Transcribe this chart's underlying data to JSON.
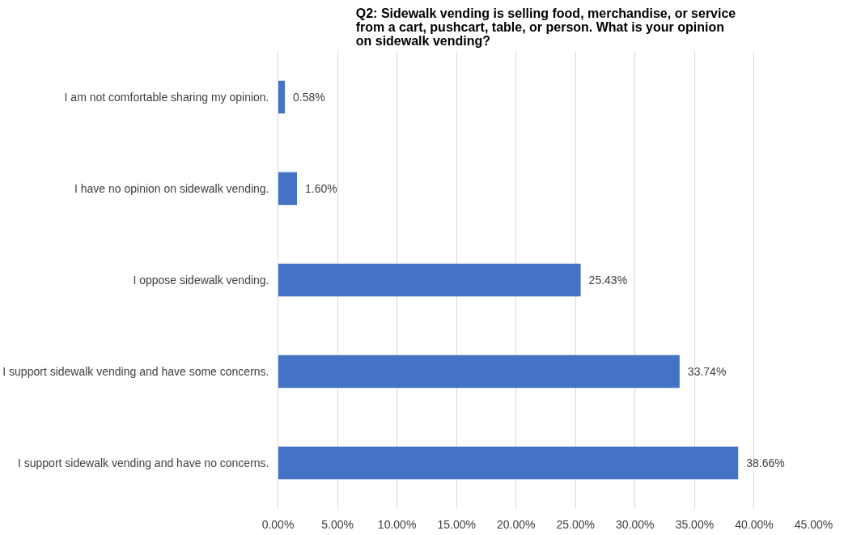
{
  "chart_data": {
    "type": "bar",
    "orientation": "horizontal",
    "title": "Q2: Sidewalk vending is selling food, merchandise, or service from a cart, pushcart, table, or person. What is your opinion on sidewalk vending?",
    "categories": [
      "I am not comfortable sharing my opinion.",
      "I have no opinion on sidewalk vending.",
      "I oppose sidewalk vending.",
      "I support sidewalk vending and have some concerns.",
      "I support sidewalk vending and have no concerns."
    ],
    "values": [
      0.58,
      1.6,
      25.43,
      33.74,
      38.66
    ],
    "value_labels": [
      "0.58%",
      "1.60%",
      "25.43%",
      "33.74%",
      "38.66%"
    ],
    "color": "#4472c4",
    "xlim": [
      0,
      45
    ],
    "xticks": [
      {
        "value": 0,
        "label": "0.00%"
      },
      {
        "value": 5,
        "label": "5.00%"
      },
      {
        "value": 10,
        "label": "10.00%"
      },
      {
        "value": 15,
        "label": "15.00%"
      },
      {
        "value": 20,
        "label": "20.00%"
      },
      {
        "value": 25,
        "label": "25.00%"
      },
      {
        "value": 30,
        "label": "30.00%"
      },
      {
        "value": 35,
        "label": "35.00%"
      },
      {
        "value": 40,
        "label": "40.00%"
      },
      {
        "value": 45,
        "label": "45.00%"
      }
    ],
    "grid": "x"
  }
}
